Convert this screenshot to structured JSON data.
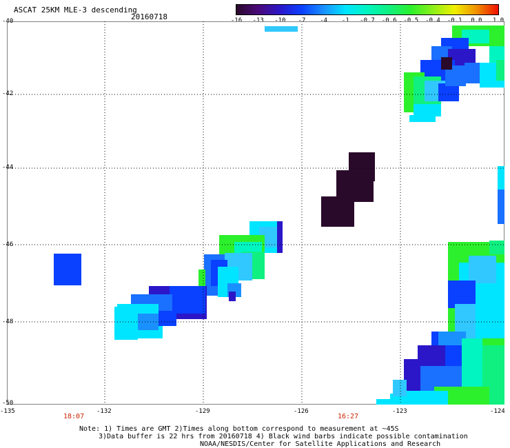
{
  "header": {
    "title": "ASCAT 25KM MLE-3 descending",
    "date": "20160718"
  },
  "colorbar": {
    "labels": [
      "-16",
      "-13",
      "-10",
      "-7",
      "-4",
      "-1",
      "-0.7",
      "-0.6",
      "-0.5",
      "-0.4",
      "-0.1",
      "0.0",
      "1.0"
    ],
    "colors": [
      "#2a0a2a",
      "#4a0a7a",
      "#2b16c8",
      "#0a40ff",
      "#1a90ff",
      "#00e5ff",
      "#00f5c0",
      "#10f080",
      "#2cf02c",
      "#8cf01a",
      "#f0f000",
      "#f09000",
      "#f01000"
    ]
  },
  "axes": {
    "x_labels": [
      "-135",
      "-132",
      "-129",
      "-126",
      "-123",
      "-124"
    ],
    "y_labels": [
      "-40",
      "-42",
      "-44",
      "-46",
      "-48",
      "-50"
    ]
  },
  "times": [
    "18:07",
    "16:27"
  ],
  "notes": [
    "Note: 1) Times are GMT 2)Times along bottom correspond to measurement at ~45S",
    "3)Data buffer is 22 hrs from 20160718 4) Black wind barbs indicate possible contamination",
    "NOAA/NESDIS/Center for Satellite Applications and Research"
  ]
}
